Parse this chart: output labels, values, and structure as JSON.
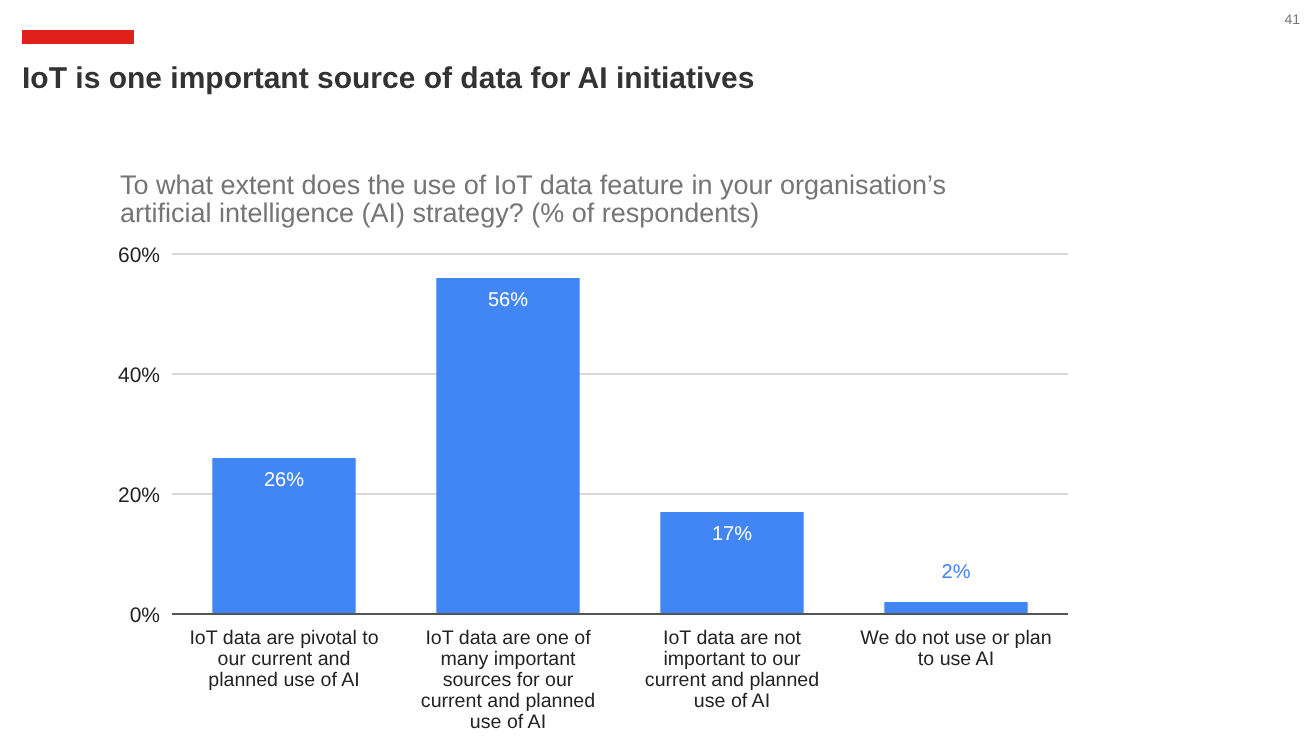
{
  "chart_data": {
    "type": "bar",
    "title": "IoT is one important source of data for AI initiatives",
    "subtitle": "To what extent does the use of IoT data feature in your organisation’s artificial intelligence (AI) strategy? (% of respondents)",
    "categories": [
      "IoT data are pivotal to our current and planned use of AI",
      "IoT data are one of many important sources for our current and planned use of AI",
      "IoT data are not important to our current and planned use of AI",
      "We do not use or plan to use AI"
    ],
    "values": [
      26,
      56,
      17,
      2
    ],
    "color": "#4285f4",
    "value_labels": [
      "26%",
      "56%",
      "17%",
      "2%"
    ],
    "ylim": [
      0,
      60
    ],
    "yticks": [
      {
        "value": 0,
        "label": "0%"
      },
      {
        "value": 20,
        "label": "20%"
      },
      {
        "value": 40,
        "label": "40%"
      },
      {
        "value": 60,
        "label": "60%"
      }
    ],
    "grid": "y",
    "annotations": [
      "41"
    ]
  }
}
